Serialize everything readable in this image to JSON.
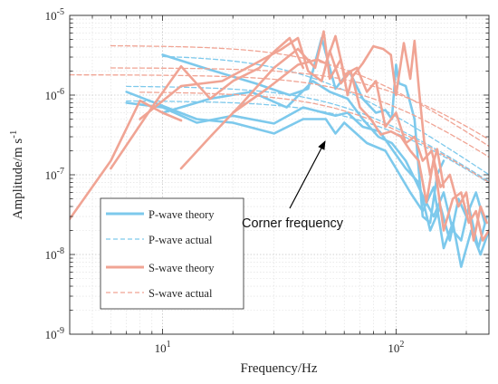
{
  "chart_data": {
    "type": "line",
    "title": "",
    "xlabel": "Frequency/Hz",
    "ylabel": "Amplitude/m s",
    "ylabel_superscript": "-1",
    "xscale": "log",
    "yscale": "log",
    "xlim": [
      4,
      250
    ],
    "ylim": [
      1e-09,
      1e-05
    ],
    "grid": "on (major and minor, dotted)",
    "x_ticks": [
      {
        "value": 10,
        "base": "10",
        "exp": "1"
      },
      {
        "value": 100,
        "base": "10",
        "exp": "2"
      }
    ],
    "y_ticks": [
      {
        "value": 1e-09,
        "base": "10",
        "exp": "-9"
      },
      {
        "value": 1e-08,
        "base": "10",
        "exp": "-8"
      },
      {
        "value": 1e-07,
        "base": "10",
        "exp": "-7"
      },
      {
        "value": 1e-06,
        "base": "10",
        "exp": "-6"
      },
      {
        "value": 1e-05,
        "base": "10",
        "exp": "-5"
      }
    ],
    "legend": {
      "placement": "lower-left",
      "entries": [
        {
          "label": "P-wave theory",
          "color": "#7dc9ec",
          "style": "solid"
        },
        {
          "label": "P-wave actual",
          "color": "#7dc9ec",
          "style": "dashed"
        },
        {
          "label": "S-wave theory",
          "color": "#f0a494",
          "style": "solid"
        },
        {
          "label": "S-wave actual",
          "color": "#f0a494",
          "style": "dashed"
        }
      ]
    },
    "annotation": {
      "text": "Corner frequency",
      "arrow_tip": [
        55,
        3.2e-07
      ]
    },
    "series": [
      {
        "kind": "p-theory",
        "color": "#7dc9ec",
        "style": "solid",
        "x": [
          10,
          15,
          25,
          35,
          42,
          48,
          55,
          63,
          72,
          82,
          90,
          96,
          100,
          103,
          110,
          120,
          130,
          140,
          150,
          160
        ],
        "y": [
          3.2e-06,
          2.2e-06,
          1.4e-06,
          1e-06,
          1.2e-06,
          5.2e-06,
          1.2e-06,
          2e-06,
          9e-07,
          6e-07,
          6.5e-07,
          5e-07,
          2.4e-06,
          1.4e-06,
          1.3e-06,
          5e-07,
          3e-08,
          2.5e-08,
          1e-07,
          1.5e-07
        ]
      },
      {
        "kind": "p-theory",
        "color": "#7dc9ec",
        "style": "solid",
        "x": [
          7,
          14,
          20,
          30,
          40,
          50,
          55,
          60,
          75,
          90,
          100,
          115,
          130,
          145,
          160,
          175,
          190,
          210,
          230,
          250
        ],
        "y": [
          1.1e-06,
          5e-07,
          4.5e-07,
          3.3e-07,
          5e-07,
          5e-07,
          3.3e-07,
          4.5e-07,
          2.5e-07,
          2e-07,
          1.2e-07,
          6e-08,
          3.5e-08,
          7e-08,
          1.2e-08,
          2.5e-08,
          7e-09,
          2e-08,
          1e-08,
          2e-08
        ]
      },
      {
        "kind": "p-theory",
        "color": "#7dc9ec",
        "style": "solid",
        "x": [
          7,
          10,
          14,
          20,
          30,
          40,
          55,
          62,
          72,
          85,
          95,
          110,
          125,
          140,
          155,
          170,
          185,
          200,
          220,
          240
        ],
        "y": [
          8e-07,
          7e-07,
          4.5e-07,
          5.5e-07,
          4.4e-07,
          7e-07,
          5.5e-07,
          6e-07,
          4e-07,
          3.5e-07,
          2.2e-07,
          1.2e-07,
          8e-08,
          2e-08,
          4e-08,
          1.5e-08,
          5e-08,
          3e-08,
          6e-08,
          2.5e-08
        ]
      },
      {
        "kind": "p-theory",
        "color": "#7dc9ec",
        "style": "solid",
        "x": [
          10,
          16,
          24,
          34,
          44,
          52,
          62,
          72,
          84,
          96,
          110,
          120,
          132,
          145,
          160,
          175,
          190,
          205,
          225,
          245
        ],
        "y": [
          6e-07,
          9e-07,
          1.1e-06,
          7e-07,
          1.5e-06,
          1.1e-06,
          9e-07,
          5e-07,
          3e-07,
          2.5e-07,
          1.5e-07,
          9e-08,
          5e-08,
          3e-08,
          6e-08,
          2e-08,
          1.5e-08,
          4e-08,
          1.2e-08,
          3e-08
        ]
      },
      {
        "kind": "p-actual",
        "color": "#7dc9ec",
        "style": "dashed",
        "fc": 45,
        "omega0": 3.2e-06,
        "x_start": 10
      },
      {
        "kind": "p-actual",
        "color": "#7dc9ec",
        "style": "dashed",
        "fc": 65,
        "omega0": 1.3e-06,
        "x_start": 7
      },
      {
        "kind": "p-actual",
        "color": "#7dc9ec",
        "style": "dashed",
        "fc": 80,
        "omega0": 8.5e-07,
        "x_start": 7
      },
      {
        "kind": "s-theory",
        "color": "#f0a494",
        "style": "solid",
        "x": [
          4,
          6,
          8,
          10,
          12
        ],
        "y": [
          2.8e-08,
          1.5e-07,
          8.5e-07,
          6e-07,
          4.8e-07
        ]
      },
      {
        "kind": "s-theory",
        "color": "#f0a494",
        "style": "solid",
        "x": [
          6,
          9,
          12,
          16,
          20,
          26,
          30,
          35,
          40
        ],
        "y": [
          1.2e-07,
          7e-07,
          2.3e-06,
          9e-07,
          1.5e-06,
          2.2e-06,
          3.5e-06,
          5.2e-06,
          2.2e-06
        ]
      },
      {
        "kind": "s-theory",
        "color": "#f0a494",
        "style": "solid",
        "x": [
          12,
          16,
          22,
          30,
          38,
          45,
          49,
          52,
          58,
          62,
          65,
          72,
          80,
          88,
          95,
          100,
          108,
          115,
          120,
          126,
          132,
          140,
          150,
          160
        ],
        "y": [
          1.2e-07,
          3e-07,
          8e-07,
          2.2e-06,
          3.8e-06,
          2.2e-06,
          6.3e-06,
          1.6e-06,
          2.8e-06,
          1e-06,
          1.7e-06,
          2.5e-06,
          4.1e-06,
          3.8e-06,
          3.2e-06,
          1e-06,
          4.5e-06,
          1.6e-06,
          4.8e-06,
          1e-06,
          2.6e-07,
          1e-07,
          2.1e-07,
          7e-08
        ]
      },
      {
        "kind": "s-theory",
        "color": "#f0a494",
        "style": "solid",
        "x": [
          8,
          12,
          18,
          25,
          32,
          38,
          42,
          48,
          52,
          58,
          64,
          70,
          78,
          86,
          95,
          105,
          115,
          125,
          135,
          145,
          160,
          175,
          190,
          205,
          220,
          235,
          250
        ],
        "y": [
          5e-07,
          1.3e-06,
          1.5e-06,
          2.5e-06,
          3.7e-06,
          5.2e-06,
          2e-06,
          1.5e-06,
          3.6e-06,
          1.4e-06,
          2e-06,
          7e-07,
          5e-07,
          3.2e-07,
          3.5e-07,
          3e-07,
          2e-07,
          1.5e-07,
          4.5e-08,
          1.6e-07,
          2e-08,
          5e-08,
          6e-08,
          2.5e-08,
          3.5e-08,
          1.5e-08,
          2e-08
        ]
      },
      {
        "kind": "s-theory",
        "color": "#f0a494",
        "style": "solid",
        "x": [
          20,
          28,
          38,
          46,
          50,
          55,
          60,
          68,
          75,
          82,
          90,
          100,
          110,
          120,
          130,
          142,
          155,
          170,
          185,
          200,
          215,
          230,
          245
        ],
        "y": [
          6e-07,
          1.2e-06,
          2.4e-06,
          2.8e-06,
          2.5e-06,
          5.5e-06,
          1.8e-06,
          2.2e-06,
          1.1e-06,
          1.5e-06,
          4e-07,
          6e-07,
          2.5e-07,
          3e-07,
          1.5e-07,
          2e-07,
          7e-08,
          1e-07,
          4e-08,
          6e-08,
          1.5e-08,
          4e-08,
          2.5e-08
        ]
      },
      {
        "kind": "s-actual",
        "color": "#f0a494",
        "style": "dashed",
        "fc": 60,
        "omega0": 4.2e-06,
        "x_start": 6
      },
      {
        "kind": "s-actual",
        "color": "#f0a494",
        "style": "dashed",
        "fc": 80,
        "omega0": 1.8e-06,
        "x_start": 4
      },
      {
        "kind": "s-actual",
        "color": "#f0a494",
        "style": "dashed",
        "fc": 95,
        "omega0": 2.2e-06,
        "x_start": 6
      },
      {
        "kind": "s-actual",
        "color": "#f0a494",
        "style": "dashed",
        "fc": 70,
        "omega0": 1.1e-06,
        "x_start": 8
      }
    ]
  }
}
